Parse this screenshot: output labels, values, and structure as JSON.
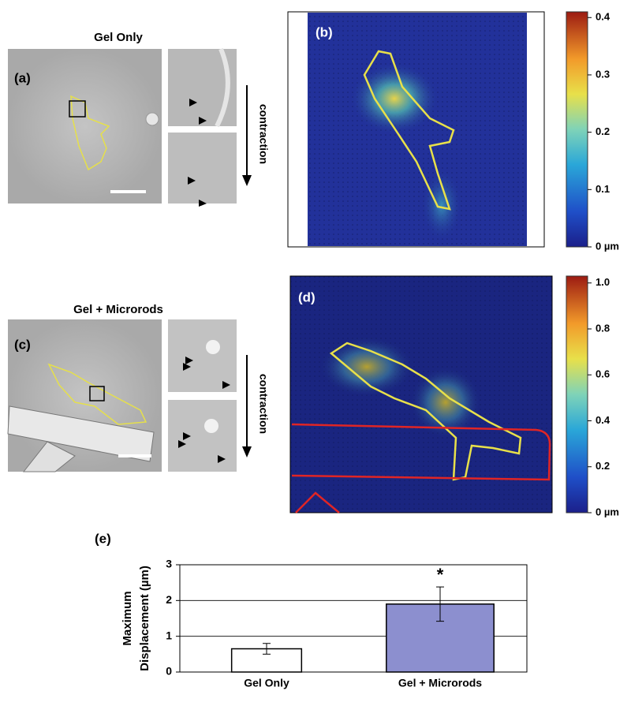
{
  "panel_a": {
    "label": "(a)",
    "title": "Gel Only",
    "arrow_label": "contraction"
  },
  "panel_b": {
    "label": "(b)",
    "colorbar": {
      "ylim": [
        0,
        0.41
      ],
      "yticks": [
        {
          "value": 0,
          "label": "0 µm"
        },
        0.1,
        0.2,
        0.3,
        0.4
      ]
    }
  },
  "panel_c": {
    "label": "(c)",
    "title": "Gel + Microrods",
    "arrow_label": "contraction"
  },
  "panel_d": {
    "label": "(d)",
    "colorbar": {
      "ylim": [
        0,
        1.03
      ],
      "yticks": [
        {
          "value": 0,
          "label": "0 µm"
        },
        0.2,
        0.4,
        0.6,
        0.8,
        {
          "value": 1,
          "label": "1.0"
        }
      ]
    }
  },
  "panel_e": {
    "label": "(e)"
  },
  "chart_data": {
    "type": "bar",
    "ylabel": [
      "Maximum",
      "Displacement (µm)"
    ],
    "categories": [
      "Gel Only",
      "Gel + Microrods"
    ],
    "values": [
      0.65,
      1.9
    ],
    "errors": [
      0.15,
      0.48
    ],
    "colors": [
      "#ffffff",
      "#8c8fcf"
    ],
    "annotations": [
      null,
      "*"
    ],
    "ylim": [
      0,
      3
    ],
    "yticks": [
      0,
      1,
      2,
      3
    ],
    "grid": true
  }
}
